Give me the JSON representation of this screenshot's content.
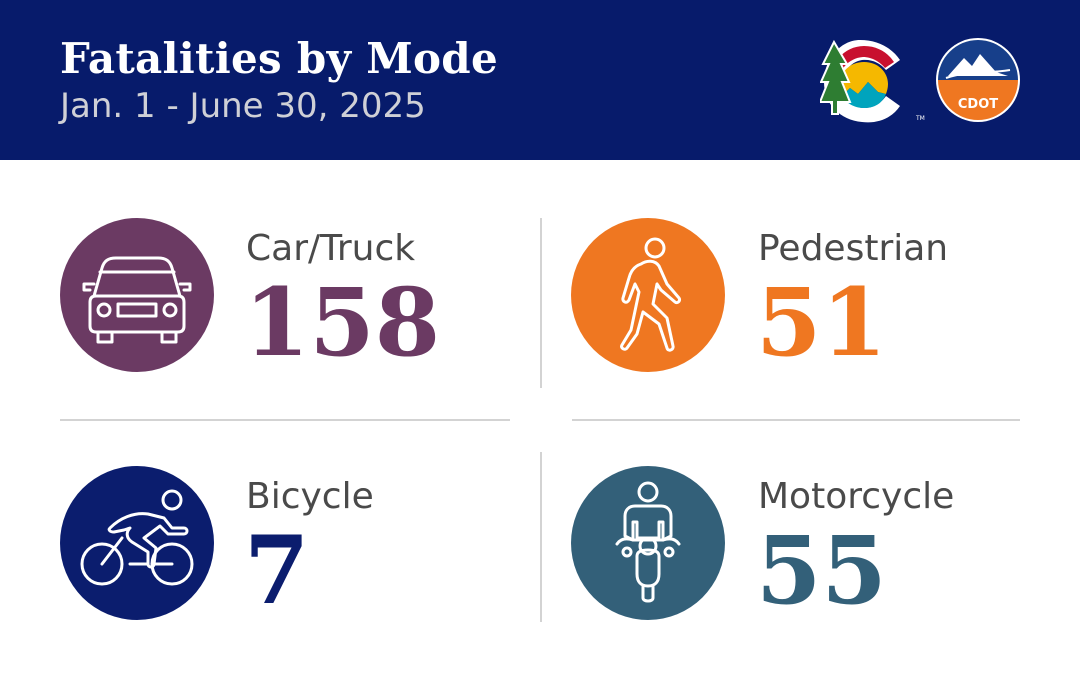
{
  "header": {
    "title": "Fatalities by Mode",
    "subtitle": "Jan. 1 - June 30, 2025",
    "logo_text": "CDOT",
    "logo_tm": "TM",
    "background": "#071b6b"
  },
  "modes": [
    {
      "label": "Car/Truck",
      "value": "158",
      "color": "#6b3a63",
      "icon": "car-icon"
    },
    {
      "label": "Pedestrian",
      "value": "51",
      "color": "#ef7721",
      "icon": "pedestrian-icon"
    },
    {
      "label": "Bicycle",
      "value": "7",
      "color": "#0b1d6e",
      "icon": "bicycle-icon"
    },
    {
      "label": "Motorcycle",
      "value": "55",
      "color": "#336079",
      "icon": "motorcycle-icon"
    }
  ]
}
